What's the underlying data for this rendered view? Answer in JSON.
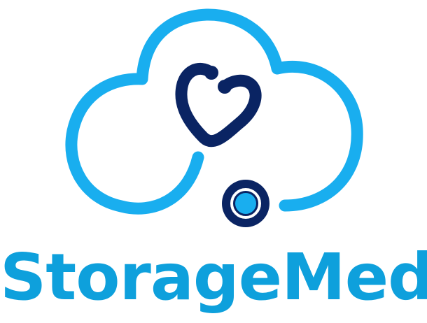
{
  "brand": {
    "name": "StorageMed",
    "colors": {
      "cloud": "#19AEEF",
      "wordmark": "#0EA0DC",
      "stethoscope": "#0A2463",
      "white": "#FFFFFF"
    },
    "icons": [
      "cloud-icon",
      "stethoscope-icon",
      "heart-icon"
    ]
  }
}
